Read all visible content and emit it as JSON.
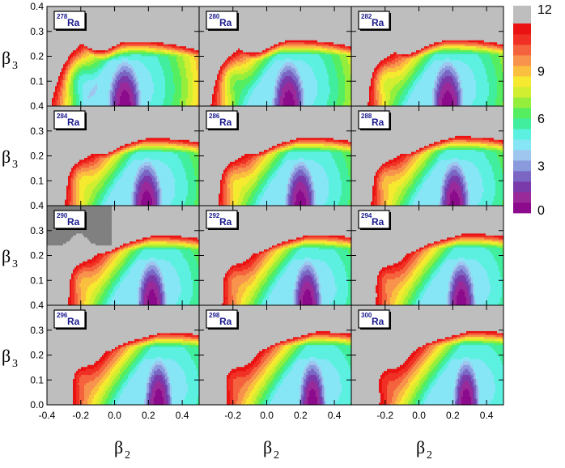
{
  "chart_data": {
    "type": "heatmap",
    "layout": {
      "rows": 4,
      "cols": 3
    },
    "xlabel": "β",
    "xlabel_sub": "2",
    "ylabel": "β",
    "ylabel_sub": "3",
    "xlim": [
      -0.4,
      0.5
    ],
    "ylim": [
      0.0,
      0.4
    ],
    "x_ticks": [
      -0.4,
      -0.2,
      0.0,
      0.2,
      0.4
    ],
    "x_tick_labels_col0": [
      "-0.4",
      "-0.2",
      "0.0",
      "0.2",
      "0.4"
    ],
    "x_tick_labels_other": [
      "-0.2",
      "0.0",
      "0.2",
      "0.4"
    ],
    "y_ticks_bottom_row": [
      "0.0",
      "0.1",
      "0.2",
      "0.3",
      "0.4"
    ],
    "y_ticks_other_rows": [
      "0.1",
      "0.2",
      "0.3",
      "0.4"
    ],
    "colorbar": {
      "min": 0,
      "max": 12,
      "tick_values": [
        0,
        3,
        6,
        9,
        12
      ],
      "tick_labels": [
        "0",
        "3",
        "6",
        "9",
        "12"
      ],
      "colors": [
        "#8c0a8c",
        "#9a2a9a",
        "#7a3aaa",
        "#7b66c4",
        "#8a9adc",
        "#9fc6ee",
        "#86e6f6",
        "#5cf0e0",
        "#40ee9e",
        "#55ee60",
        "#96ee3c",
        "#d2ee30",
        "#f6ea30",
        "#fbbf40",
        "#f7934c",
        "#f4623e",
        "#f03024",
        "#ea1212"
      ],
      "above_color": "#bebebe"
    },
    "panels": [
      {
        "mass": "278",
        "element": "Ra",
        "row": 0,
        "col": 0,
        "min_beta2": 0.06,
        "min_beta3": 0.03,
        "dark_region": false
      },
      {
        "mass": "280",
        "element": "Ra",
        "row": 0,
        "col": 1,
        "min_beta2": 0.13,
        "min_beta3": 0.03,
        "dark_region": false
      },
      {
        "mass": "282",
        "element": "Ra",
        "row": 0,
        "col": 2,
        "min_beta2": 0.17,
        "min_beta3": 0.03,
        "dark_region": false
      },
      {
        "mass": "284",
        "element": "Ra",
        "row": 1,
        "col": 0,
        "min_beta2": 0.19,
        "min_beta3": 0.03,
        "dark_region": false
      },
      {
        "mass": "286",
        "element": "Ra",
        "row": 1,
        "col": 1,
        "min_beta2": 0.2,
        "min_beta3": 0.03,
        "dark_region": false
      },
      {
        "mass": "288",
        "element": "Ra",
        "row": 1,
        "col": 2,
        "min_beta2": 0.21,
        "min_beta3": 0.03,
        "dark_region": false
      },
      {
        "mass": "290",
        "element": "Ra",
        "row": 2,
        "col": 0,
        "min_beta2": 0.22,
        "min_beta3": 0.03,
        "dark_region": true
      },
      {
        "mass": "292",
        "element": "Ra",
        "row": 2,
        "col": 1,
        "min_beta2": 0.24,
        "min_beta3": 0.03,
        "dark_region": false
      },
      {
        "mass": "294",
        "element": "Ra",
        "row": 2,
        "col": 2,
        "min_beta2": 0.25,
        "min_beta3": 0.03,
        "dark_region": false
      },
      {
        "mass": "296",
        "element": "Ra",
        "row": 3,
        "col": 0,
        "min_beta2": 0.26,
        "min_beta3": 0.03,
        "dark_region": false
      },
      {
        "mass": "298",
        "element": "Ra",
        "row": 3,
        "col": 1,
        "min_beta2": 0.27,
        "min_beta3": 0.03,
        "dark_region": false
      },
      {
        "mass": "300",
        "element": "Ra",
        "row": 3,
        "col": 2,
        "min_beta2": 0.28,
        "min_beta3": 0.03,
        "dark_region": false
      }
    ]
  }
}
